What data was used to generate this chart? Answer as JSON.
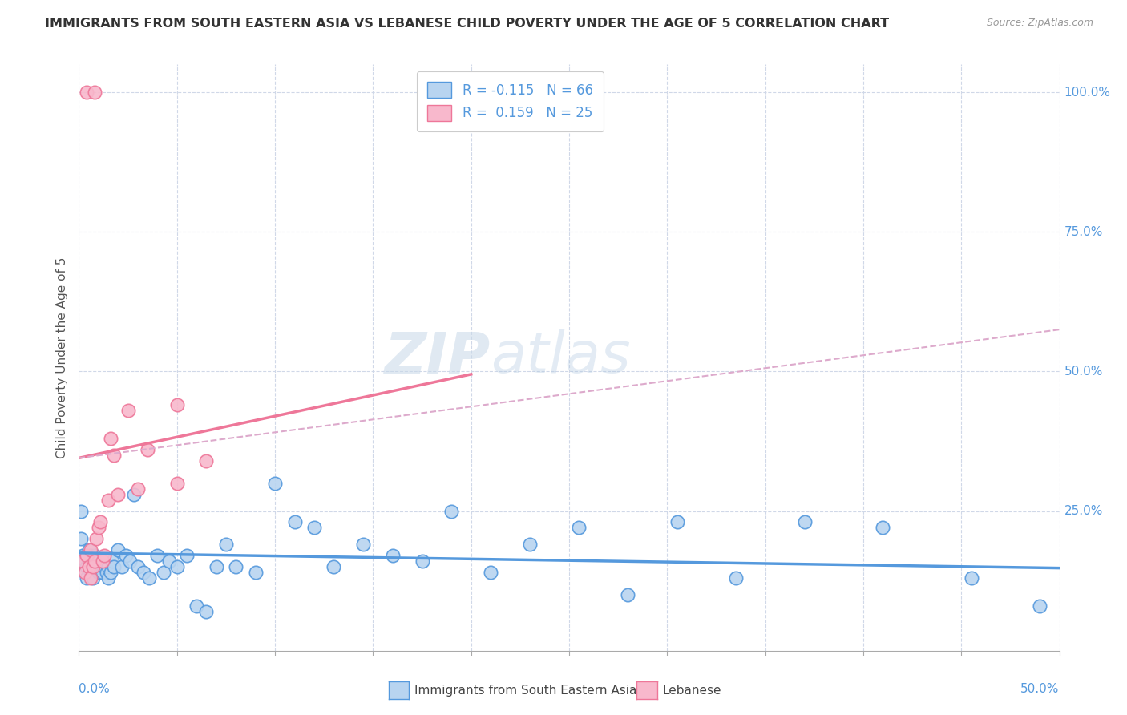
{
  "title": "IMMIGRANTS FROM SOUTH EASTERN ASIA VS LEBANESE CHILD POVERTY UNDER THE AGE OF 5 CORRELATION CHART",
  "source": "Source: ZipAtlas.com",
  "ylabel": "Child Poverty Under the Age of 5",
  "legend_label1": "Immigrants from South Eastern Asia",
  "legend_label2": "Lebanese",
  "r1": "-0.115",
  "n1": "66",
  "r2": "0.159",
  "n2": "25",
  "xlim": [
    0.0,
    0.5
  ],
  "ylim": [
    0.0,
    1.05
  ],
  "right_yticks": [
    0.0,
    0.25,
    0.5,
    0.75,
    1.0
  ],
  "right_yticklabels": [
    "",
    "25.0%",
    "50.0%",
    "75.0%",
    "100.0%"
  ],
  "blue_color": "#b8d4f0",
  "pink_color": "#f8b8cc",
  "blue_line_color": "#5599dd",
  "pink_line_color": "#ee7799",
  "dashed_line_color": "#ddaacc",
  "watermark_zip": "ZIP",
  "watermark_atlas": "atlas",
  "blue_scatter_x": [
    0.001,
    0.002,
    0.003,
    0.003,
    0.004,
    0.004,
    0.005,
    0.005,
    0.006,
    0.006,
    0.007,
    0.007,
    0.008,
    0.008,
    0.009,
    0.01,
    0.01,
    0.011,
    0.011,
    0.012,
    0.012,
    0.013,
    0.014,
    0.015,
    0.015,
    0.016,
    0.017,
    0.018,
    0.02,
    0.022,
    0.024,
    0.026,
    0.028,
    0.03,
    0.033,
    0.036,
    0.04,
    0.043,
    0.046,
    0.05,
    0.055,
    0.06,
    0.065,
    0.07,
    0.075,
    0.08,
    0.09,
    0.1,
    0.11,
    0.12,
    0.13,
    0.145,
    0.16,
    0.175,
    0.19,
    0.21,
    0.23,
    0.255,
    0.28,
    0.305,
    0.335,
    0.37,
    0.41,
    0.455,
    0.49,
    0.001
  ],
  "blue_scatter_y": [
    0.2,
    0.17,
    0.16,
    0.14,
    0.15,
    0.13,
    0.18,
    0.16,
    0.14,
    0.17,
    0.15,
    0.13,
    0.17,
    0.15,
    0.16,
    0.14,
    0.16,
    0.15,
    0.14,
    0.16,
    0.14,
    0.15,
    0.14,
    0.13,
    0.15,
    0.14,
    0.16,
    0.15,
    0.18,
    0.15,
    0.17,
    0.16,
    0.28,
    0.15,
    0.14,
    0.13,
    0.17,
    0.14,
    0.16,
    0.15,
    0.17,
    0.08,
    0.07,
    0.15,
    0.19,
    0.15,
    0.14,
    0.3,
    0.23,
    0.22,
    0.15,
    0.19,
    0.17,
    0.16,
    0.25,
    0.14,
    0.19,
    0.22,
    0.1,
    0.23,
    0.13,
    0.23,
    0.22,
    0.13,
    0.08,
    0.25
  ],
  "pink_scatter_x": [
    0.002,
    0.003,
    0.004,
    0.004,
    0.005,
    0.006,
    0.006,
    0.007,
    0.008,
    0.008,
    0.009,
    0.01,
    0.011,
    0.012,
    0.013,
    0.015,
    0.016,
    0.018,
    0.02,
    0.025,
    0.035,
    0.05,
    0.065,
    0.03,
    0.05
  ],
  "pink_scatter_y": [
    0.16,
    0.14,
    0.17,
    1.0,
    0.15,
    0.13,
    0.18,
    0.15,
    0.16,
    1.0,
    0.2,
    0.22,
    0.23,
    0.16,
    0.17,
    0.27,
    0.38,
    0.35,
    0.28,
    0.43,
    0.36,
    0.44,
    0.34,
    0.29,
    0.3
  ],
  "blue_trend_x": [
    0.0,
    0.5
  ],
  "blue_trend_y": [
    0.175,
    0.148
  ],
  "pink_trend_x": [
    0.0,
    0.2
  ],
  "pink_trend_y": [
    0.345,
    0.495
  ],
  "dashed_trend_x": [
    0.0,
    0.5
  ],
  "dashed_trend_y": [
    0.345,
    0.575
  ]
}
